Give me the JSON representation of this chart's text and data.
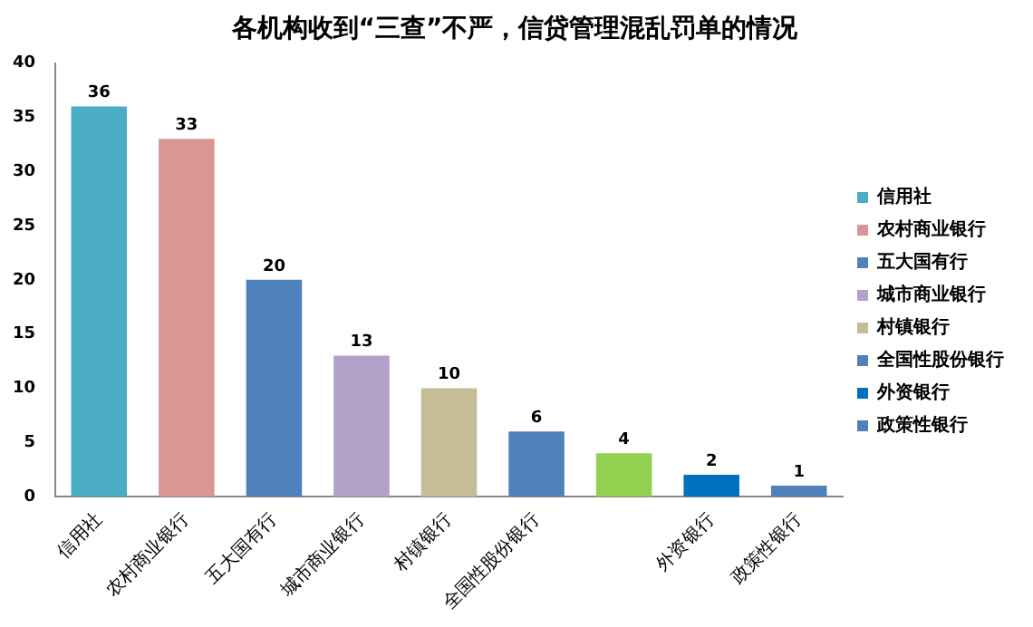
{
  "chart_data": {
    "type": "bar",
    "title": "各机构收到“三查”不严，信贷管理混乱罚单的情况",
    "categories": [
      "信用社",
      "农村商业银行",
      "五大国有行",
      "城市商业银行",
      "村镇银行",
      "全国性股份银行",
      null,
      "外资银行",
      "政策性银行"
    ],
    "series": [
      {
        "name": "信用社",
        "color": "#4bacc6",
        "values": [
          36,
          null,
          null,
          null,
          null,
          null,
          null,
          null,
          null
        ]
      },
      {
        "name": "农村商业银行",
        "color": "#d99694",
        "values": [
          null,
          33,
          null,
          null,
          null,
          null,
          null,
          null,
          null
        ]
      },
      {
        "name": "五大国有行",
        "color": "#4f81bd",
        "values": [
          null,
          null,
          20,
          null,
          null,
          null,
          null,
          null,
          null
        ]
      },
      {
        "name": "城市商业银行",
        "color": "#b3a2c7",
        "values": [
          null,
          null,
          null,
          13,
          null,
          null,
          null,
          null,
          null
        ]
      },
      {
        "name": "村镇银行",
        "color": "#c4bd97",
        "values": [
          null,
          null,
          null,
          null,
          10,
          null,
          null,
          null,
          null
        ]
      },
      {
        "name": "全国性股份银行",
        "color": "#4f81bd",
        "values": [
          null,
          null,
          null,
          null,
          null,
          6,
          null,
          null,
          null
        ]
      },
      {
        "color": "#92d050",
        "values": [
          null,
          null,
          null,
          null,
          null,
          null,
          4,
          null,
          null
        ]
      },
      {
        "name": "外资银行",
        "color": "#0070c0",
        "values": [
          null,
          null,
          null,
          null,
          null,
          null,
          null,
          2,
          null
        ]
      },
      {
        "name": "政策性银行",
        "color": "#4f81bd",
        "values": [
          null,
          null,
          null,
          null,
          null,
          null,
          null,
          null,
          1
        ]
      }
    ],
    "ylim": [
      0,
      40
    ],
    "yticks": [
      0,
      5,
      10,
      15,
      20,
      25,
      30,
      35,
      40
    ],
    "grid": false,
    "legend": "right",
    "data_labels": true
  }
}
